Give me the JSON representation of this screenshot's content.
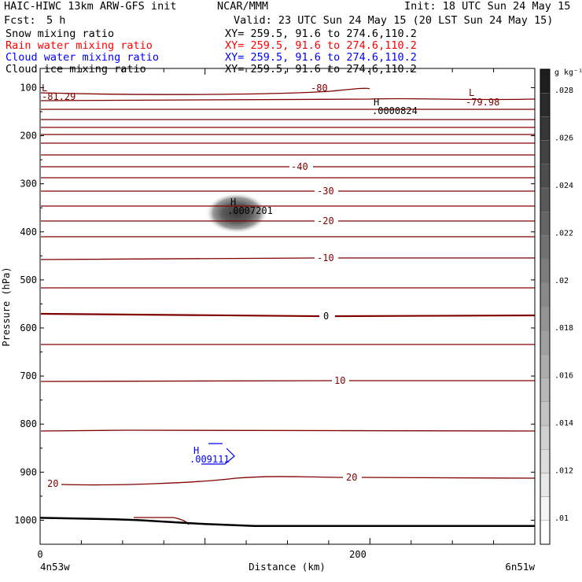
{
  "header": {
    "title": "HAIC-HIWC 13km ARW-GFS init",
    "center": "NCAR/MMM",
    "init": "Init: 18 UTC Sun 24 May 15",
    "fcst_label": "Fcst:",
    "fcst_value": "5 h",
    "valid": "Valid: 23 UTC Sun 24 May 15 (20 LST Sun 24 May 15)"
  },
  "fields": [
    {
      "name": "Snow mixing ratio",
      "xy": "XY= 259.5, 91.6 to 274.6,110.2",
      "color": "#000000"
    },
    {
      "name": "Rain water mixing ratio",
      "xy": "XY= 259.5, 91.6 to 274.6,110.2",
      "color": "#ff0000"
    },
    {
      "name": "Cloud water mixing ratio",
      "xy": "XY= 259.5, 91.6 to 274.6,110.2",
      "color": "#0000ff"
    },
    {
      "name": "Cloud ice mixing ratio",
      "xy": "XY= 259.5, 91.6 to 274.6,110.2",
      "color": "#000000"
    }
  ],
  "chart_data": {
    "type": "contour",
    "xlabel": "Distance (km)",
    "ylabel": "Pressure (hPa)",
    "xlim": [
      0,
      300
    ],
    "ylim": [
      1050,
      60
    ],
    "x_ticks": [
      "0",
      "200"
    ],
    "y_ticks": [
      "100",
      "200",
      "300",
      "400",
      "500",
      "600",
      "700",
      "800",
      "900",
      "1000"
    ],
    "x_end_labels": {
      "left": "4n53w",
      "right": "6n51w"
    },
    "colorbar": {
      "unit": "g kg⁻¹",
      "ticks": [
        ".01",
        ".012",
        ".014",
        ".016",
        ".018",
        ".02",
        ".022",
        ".024",
        ".026",
        ".028"
      ]
    },
    "temperature_contour_labels": [
      "-80",
      "-40",
      "-30",
      "-20",
      "-10",
      "0",
      "10",
      "20",
      "20"
    ],
    "extrema": [
      {
        "type": "L",
        "value": "-81.29",
        "x": 0,
        "p": 112,
        "color": "#800000"
      },
      {
        "type": "L",
        "value": "-79.98",
        "x": 276,
        "p": 112,
        "color": "#800000"
      },
      {
        "type": "H",
        "value": ".0000824",
        "x": 210,
        "p": 132,
        "color": "#000000"
      },
      {
        "type": "H",
        "value": ".0007201",
        "x": 124,
        "p": 350,
        "color": "#000000"
      },
      {
        "type": "H",
        "value": ".009111",
        "x": 95,
        "p": 875,
        "color": "#0000ff"
      }
    ],
    "terrain": [
      {
        "x": 0,
        "p": 995
      },
      {
        "x": 45,
        "p": 998
      },
      {
        "x": 60,
        "p": 1000
      },
      {
        "x": 100,
        "p": 1008
      },
      {
        "x": 130,
        "p": 1012
      },
      {
        "x": 300,
        "p": 1012
      }
    ]
  }
}
